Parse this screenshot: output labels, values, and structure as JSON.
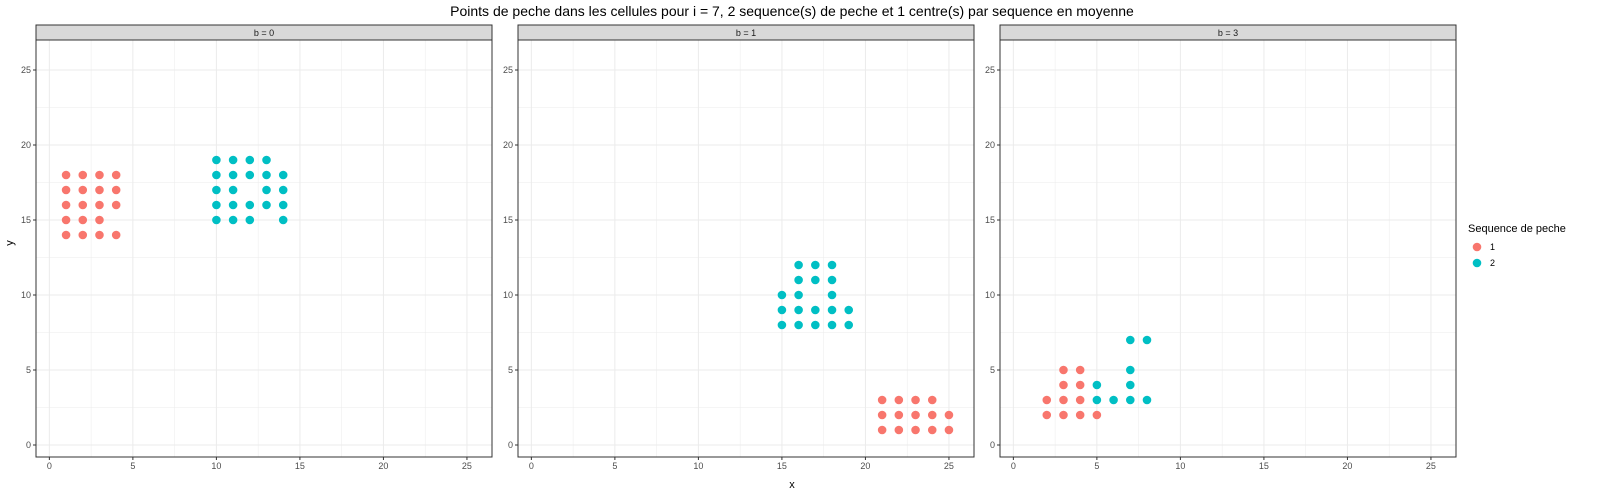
{
  "chart_data": {
    "type": "scatter",
    "title": "Points de peche dans les cellules pour i = 7, 2 sequence(s) de peche et 1 centre(s) par sequence en moyenne",
    "xlabel": "x",
    "ylabel": "y",
    "xlim": [
      -0.8,
      26.5
    ],
    "ylim": [
      -0.8,
      27
    ],
    "xticks": [
      "0",
      "5",
      "10",
      "15",
      "20",
      "25"
    ],
    "yticks": [
      "0",
      "5",
      "10",
      "15",
      "20",
      "25"
    ],
    "grid": true,
    "legend": {
      "title": "Sequence de peche",
      "position": "right",
      "entries": [
        "1",
        "2"
      ]
    },
    "series_colors": {
      "1": "#F8766D",
      "2": "#00BFC4"
    },
    "panels": [
      {
        "label": "b = 0",
        "series": [
          {
            "name": "1",
            "points": [
              [
                1,
                14
              ],
              [
                2,
                14
              ],
              [
                3,
                14
              ],
              [
                4,
                14
              ],
              [
                1,
                15
              ],
              [
                2,
                15
              ],
              [
                3,
                15
              ],
              [
                1,
                16
              ],
              [
                2,
                16
              ],
              [
                3,
                16
              ],
              [
                4,
                16
              ],
              [
                1,
                17
              ],
              [
                2,
                17
              ],
              [
                3,
                17
              ],
              [
                4,
                17
              ],
              [
                1,
                18
              ],
              [
                2,
                18
              ],
              [
                3,
                18
              ],
              [
                4,
                18
              ]
            ]
          },
          {
            "name": "2",
            "points": [
              [
                10,
                15
              ],
              [
                11,
                15
              ],
              [
                12,
                15
              ],
              [
                14,
                15
              ],
              [
                10,
                16
              ],
              [
                11,
                16
              ],
              [
                12,
                16
              ],
              [
                13,
                16
              ],
              [
                14,
                16
              ],
              [
                10,
                17
              ],
              [
                11,
                17
              ],
              [
                13,
                17
              ],
              [
                14,
                17
              ],
              [
                10,
                18
              ],
              [
                11,
                18
              ],
              [
                12,
                18
              ],
              [
                13,
                18
              ],
              [
                14,
                18
              ],
              [
                10,
                19
              ],
              [
                11,
                19
              ],
              [
                12,
                19
              ],
              [
                13,
                19
              ]
            ]
          }
        ]
      },
      {
        "label": "b = 1",
        "series": [
          {
            "name": "1",
            "points": [
              [
                21,
                1
              ],
              [
                22,
                1
              ],
              [
                23,
                1
              ],
              [
                24,
                1
              ],
              [
                25,
                1
              ],
              [
                21,
                2
              ],
              [
                22,
                2
              ],
              [
                23,
                2
              ],
              [
                24,
                2
              ],
              [
                25,
                2
              ],
              [
                21,
                3
              ],
              [
                22,
                3
              ],
              [
                23,
                3
              ],
              [
                24,
                3
              ]
            ]
          },
          {
            "name": "2",
            "points": [
              [
                15,
                8
              ],
              [
                16,
                8
              ],
              [
                17,
                8
              ],
              [
                18,
                8
              ],
              [
                19,
                8
              ],
              [
                15,
                9
              ],
              [
                16,
                9
              ],
              [
                17,
                9
              ],
              [
                18,
                9
              ],
              [
                19,
                9
              ],
              [
                15,
                10
              ],
              [
                16,
                10
              ],
              [
                18,
                10
              ],
              [
                16,
                11
              ],
              [
                17,
                11
              ],
              [
                18,
                11
              ],
              [
                16,
                12
              ],
              [
                17,
                12
              ],
              [
                18,
                12
              ]
            ]
          }
        ]
      },
      {
        "label": "b = 3",
        "series": [
          {
            "name": "1",
            "points": [
              [
                2,
                2
              ],
              [
                3,
                2
              ],
              [
                4,
                2
              ],
              [
                5,
                2
              ],
              [
                2,
                3
              ],
              [
                3,
                3
              ],
              [
                4,
                3
              ],
              [
                3,
                4
              ],
              [
                4,
                4
              ],
              [
                3,
                5
              ],
              [
                4,
                5
              ]
            ]
          },
          {
            "name": "2",
            "points": [
              [
                5,
                3
              ],
              [
                6,
                3
              ],
              [
                7,
                3
              ],
              [
                8,
                3
              ],
              [
                5,
                4
              ],
              [
                7,
                4
              ],
              [
                7,
                5
              ],
              [
                7,
                7
              ],
              [
                8,
                7
              ]
            ]
          }
        ]
      }
    ]
  }
}
